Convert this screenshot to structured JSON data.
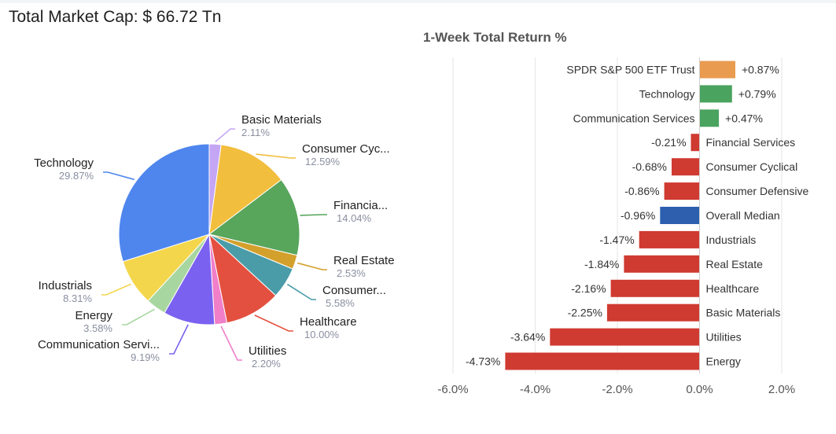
{
  "header": {
    "total_cap_label": "Total Market Cap: $ 66.72 Tn"
  },
  "chart_data": [
    {
      "type": "pie",
      "title": "",
      "slices": [
        {
          "name": "Basic Materials",
          "label": "Basic Materials",
          "value": 2.11,
          "pct": "2.11%",
          "color": "#c4a6f5"
        },
        {
          "name": "Consumer Cyclical",
          "label": "Consumer Cyc...",
          "value": 12.59,
          "pct": "12.59%",
          "color": "#f2be3d"
        },
        {
          "name": "Financial Services",
          "label": "Financia...",
          "value": 14.04,
          "pct": "14.04%",
          "color": "#58a55c"
        },
        {
          "name": "Real Estate",
          "label": "Real Estate",
          "value": 2.53,
          "pct": "2.53%",
          "color": "#d4a02c"
        },
        {
          "name": "Consumer Defensive",
          "label": "Consumer...",
          "value": 5.58,
          "pct": "5.58%",
          "color": "#4a9ca8"
        },
        {
          "name": "Healthcare",
          "label": "Healthcare",
          "value": 10.0,
          "pct": "10.00%",
          "color": "#e4503f"
        },
        {
          "name": "Utilities",
          "label": "Utilities",
          "value": 2.2,
          "pct": "2.20%",
          "color": "#f07ec8"
        },
        {
          "name": "Communication Services",
          "label": "Communication Servi...",
          "value": 9.19,
          "pct": "9.19%",
          "color": "#7b61f0"
        },
        {
          "name": "Energy",
          "label": "Energy",
          "value": 3.58,
          "pct": "3.58%",
          "color": "#a8d6a0"
        },
        {
          "name": "Industrials",
          "label": "Industrials",
          "value": 8.31,
          "pct": "8.31%",
          "color": "#f3d64b"
        },
        {
          "name": "Technology",
          "label": "Technology",
          "value": 29.87,
          "pct": "29.87%",
          "color": "#4f86ee"
        }
      ]
    },
    {
      "type": "bar",
      "orientation": "horizontal",
      "title": "1-Week Total Return %",
      "xlim": [
        -6,
        2
      ],
      "xticks": [
        -6,
        -4,
        -2,
        0,
        2
      ],
      "xtick_labels": [
        "-6.0%",
        "-4.0%",
        "-2.0%",
        "0.0%",
        "2.0%"
      ],
      "grid": true,
      "bars": [
        {
          "label": "SPDR S&P 500 ETF Trust",
          "value": 0.87,
          "value_label": "+0.87%",
          "color": "#e99b50"
        },
        {
          "label": "Technology",
          "value": 0.79,
          "value_label": "+0.79%",
          "color": "#4aa35e"
        },
        {
          "label": "Communication Services",
          "value": 0.47,
          "value_label": "+0.47%",
          "color": "#4aa35e"
        },
        {
          "label": "Financial Services",
          "value": -0.21,
          "value_label": "-0.21%",
          "color": "#cf3a31"
        },
        {
          "label": "Consumer Cyclical",
          "value": -0.68,
          "value_label": "-0.68%",
          "color": "#cf3a31"
        },
        {
          "label": "Consumer Defensive",
          "value": -0.86,
          "value_label": "-0.86%",
          "color": "#cf3a31"
        },
        {
          "label": "Overall Median",
          "value": -0.96,
          "value_label": "-0.96%",
          "color": "#2d5fae"
        },
        {
          "label": "Industrials",
          "value": -1.47,
          "value_label": "-1.47%",
          "color": "#cf3a31"
        },
        {
          "label": "Real Estate",
          "value": -1.84,
          "value_label": "-1.84%",
          "color": "#cf3a31"
        },
        {
          "label": "Healthcare",
          "value": -2.16,
          "value_label": "-2.16%",
          "color": "#cf3a31"
        },
        {
          "label": "Basic Materials",
          "value": -2.25,
          "value_label": "-2.25%",
          "color": "#cf3a31"
        },
        {
          "label": "Utilities",
          "value": -3.64,
          "value_label": "-3.64%",
          "color": "#cf3a31"
        },
        {
          "label": "Energy",
          "value": -4.73,
          "value_label": "-4.73%",
          "color": "#cf3a31"
        }
      ]
    }
  ]
}
